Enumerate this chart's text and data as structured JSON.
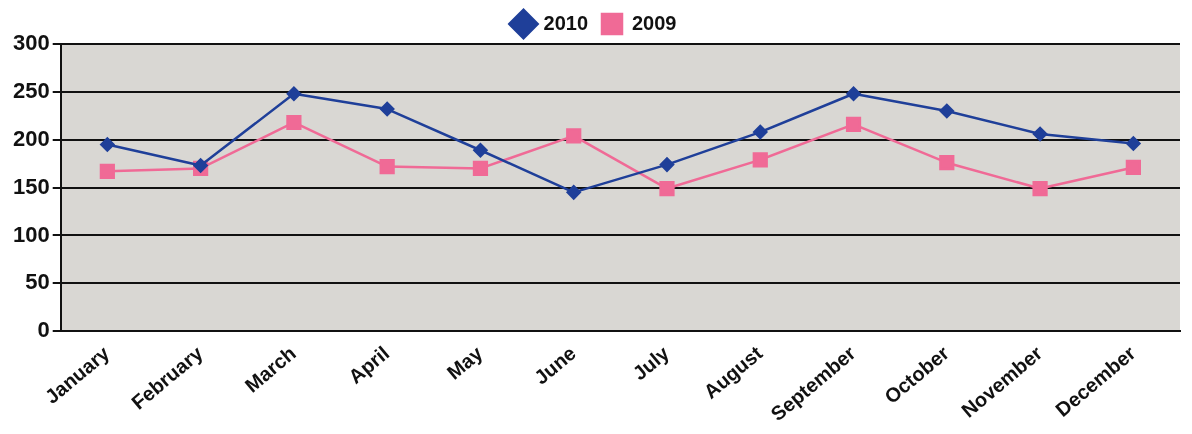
{
  "chart_data": {
    "type": "line",
    "categories": [
      "January",
      "February",
      "March",
      "April",
      "May",
      "June",
      "July",
      "August",
      "September",
      "October",
      "November",
      "December"
    ],
    "series": [
      {
        "name": "2010",
        "color": "#1f3f99",
        "marker": "diamond",
        "values": [
          195,
          173,
          248,
          232,
          189,
          145,
          174,
          208,
          248,
          230,
          206,
          196
        ]
      },
      {
        "name": "2009",
        "color": "#f06a96",
        "marker": "square",
        "values": [
          167,
          170,
          218,
          172,
          170,
          204,
          149,
          179,
          216,
          176,
          149,
          171
        ]
      }
    ],
    "ylim": [
      0,
      300
    ],
    "yticks": [
      0,
      50,
      100,
      150,
      200,
      250,
      300
    ],
    "grid": "y",
    "legend": "top"
  }
}
